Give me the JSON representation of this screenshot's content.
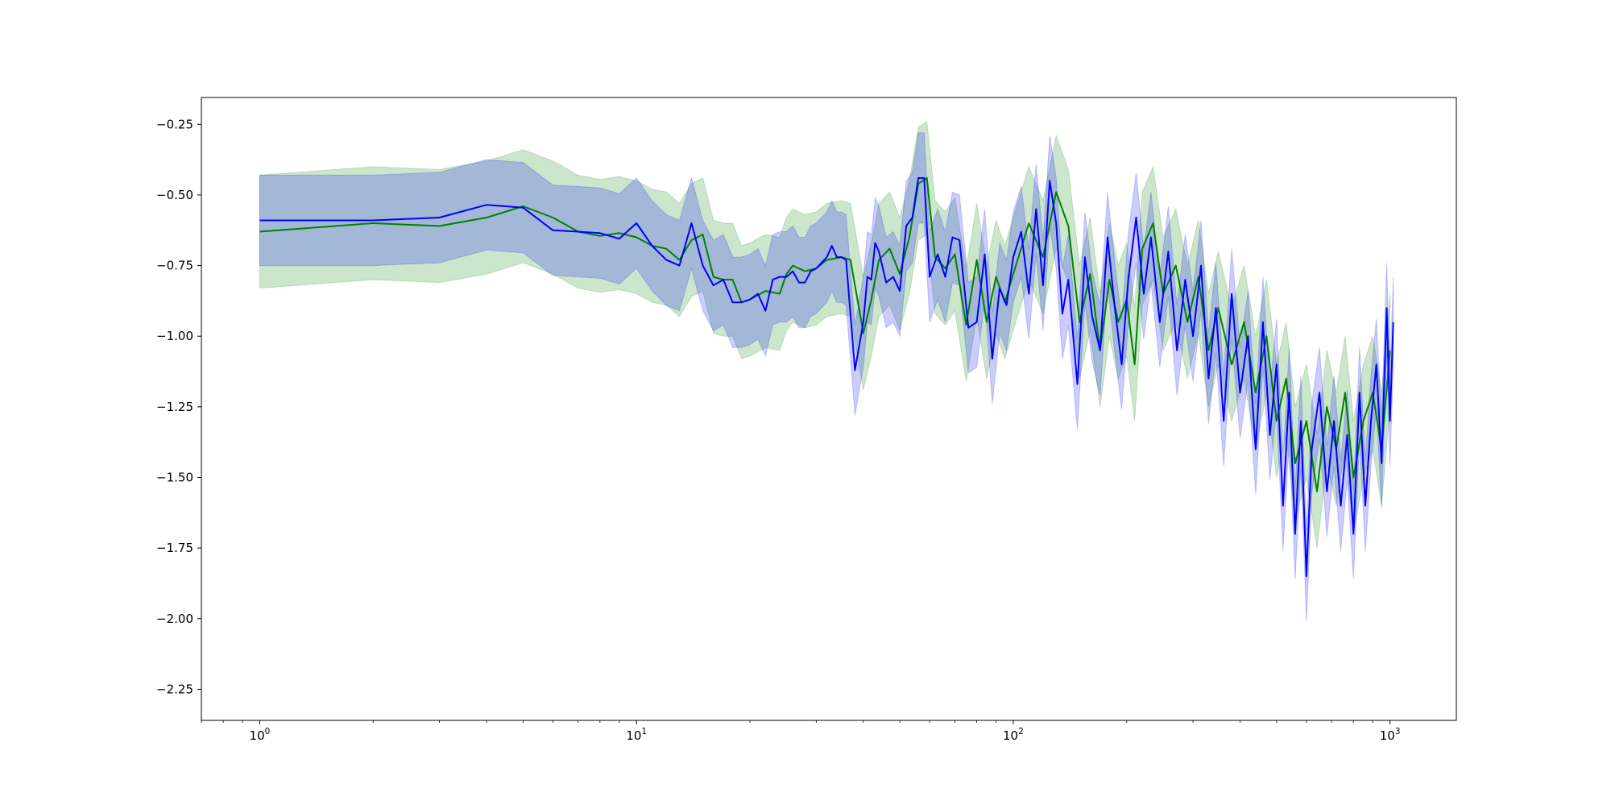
{
  "chart_data": {
    "type": "line",
    "title": "",
    "xlabel": "",
    "ylabel": "",
    "xscale": "log",
    "xlim": [
      0.7,
      1500
    ],
    "ylim": [
      -2.36,
      -0.155
    ],
    "grid": false,
    "legend": "none",
    "x_ticks": [
      {
        "base": "10",
        "exp": "0",
        "value": 1
      },
      {
        "base": "10",
        "exp": "1",
        "value": 10
      },
      {
        "base": "10",
        "exp": "2",
        "value": 100
      },
      {
        "base": "10",
        "exp": "3",
        "value": 1000
      }
    ],
    "y_ticks": [
      {
        "label": "−0.25",
        "value": -0.25
      },
      {
        "label": "−0.50",
        "value": -0.5
      },
      {
        "label": "−0.75",
        "value": -0.75
      },
      {
        "label": "−1.00",
        "value": -1.0
      },
      {
        "label": "−1.25",
        "value": -1.25
      },
      {
        "label": "−1.50",
        "value": -1.5
      },
      {
        "label": "−1.75",
        "value": -1.75
      },
      {
        "label": "−2.00",
        "value": -2.0
      },
      {
        "label": "−2.25",
        "value": -2.25
      }
    ],
    "series": [
      {
        "color": "#008000",
        "band_color": "#008000",
        "band_opacity": 0.2,
        "band_half_width": 0.2,
        "points": [
          [
            1,
            -0.63
          ],
          [
            2,
            -0.6
          ],
          [
            3,
            -0.61
          ],
          [
            4,
            -0.58
          ],
          [
            5,
            -0.54
          ],
          [
            6,
            -0.58
          ],
          [
            7,
            -0.63
          ],
          [
            8,
            -0.645
          ],
          [
            9,
            -0.635
          ],
          [
            10,
            -0.65
          ],
          [
            11,
            -0.68
          ],
          [
            12,
            -0.69
          ],
          [
            13,
            -0.73
          ],
          [
            14,
            -0.66
          ],
          [
            15,
            -0.64
          ],
          [
            16,
            -0.79
          ],
          [
            17,
            -0.8
          ],
          [
            18,
            -0.8
          ],
          [
            19,
            -0.88
          ],
          [
            20,
            -0.87
          ],
          [
            22,
            -0.84
          ],
          [
            24,
            -0.85
          ],
          [
            25,
            -0.78
          ],
          [
            26,
            -0.75
          ],
          [
            28,
            -0.77
          ],
          [
            30,
            -0.76
          ],
          [
            32,
            -0.73
          ],
          [
            35,
            -0.72
          ],
          [
            37,
            -0.73
          ],
          [
            40,
            -0.99
          ],
          [
            42,
            -0.87
          ],
          [
            44,
            -0.73
          ],
          [
            47,
            -0.69
          ],
          [
            50,
            -0.78
          ],
          [
            53,
            -0.65
          ],
          [
            56,
            -0.46
          ],
          [
            59,
            -0.44
          ],
          [
            62,
            -0.72
          ],
          [
            66,
            -0.76
          ],
          [
            70,
            -0.71
          ],
          [
            75,
            -0.96
          ],
          [
            80,
            -0.73
          ],
          [
            85,
            -0.95
          ],
          [
            90,
            -0.79
          ],
          [
            95,
            -0.88
          ],
          [
            100,
            -0.78
          ],
          [
            110,
            -0.6
          ],
          [
            120,
            -0.72
          ],
          [
            130,
            -0.49
          ],
          [
            140,
            -0.61
          ],
          [
            150,
            -0.95
          ],
          [
            160,
            -0.78
          ],
          [
            170,
            -1.05
          ],
          [
            180,
            -0.8
          ],
          [
            190,
            -0.95
          ],
          [
            200,
            -0.87
          ],
          [
            210,
            -1.1
          ],
          [
            220,
            -0.69
          ],
          [
            235,
            -0.6
          ],
          [
            250,
            -0.85
          ],
          [
            270,
            -0.75
          ],
          [
            290,
            -0.95
          ],
          [
            310,
            -0.79
          ],
          [
            330,
            -1.05
          ],
          [
            350,
            -0.9
          ],
          [
            380,
            -1.1
          ],
          [
            410,
            -0.95
          ],
          [
            440,
            -1.2
          ],
          [
            470,
            -1.0
          ],
          [
            500,
            -1.3
          ],
          [
            530,
            -1.15
          ],
          [
            560,
            -1.45
          ],
          [
            600,
            -1.3
          ],
          [
            640,
            -1.55
          ],
          [
            680,
            -1.25
          ],
          [
            720,
            -1.4
          ],
          [
            760,
            -1.2
          ],
          [
            800,
            -1.5
          ],
          [
            850,
            -1.3
          ],
          [
            900,
            -1.2
          ],
          [
            950,
            -1.4
          ],
          [
            1000,
            -1.05
          ]
        ]
      },
      {
        "color": "#0000ff",
        "band_color": "#0000ff",
        "band_opacity": 0.2,
        "band_half_width": 0.16,
        "points": [
          [
            1,
            -0.59
          ],
          [
            2,
            -0.59
          ],
          [
            3,
            -0.58
          ],
          [
            4,
            -0.535
          ],
          [
            5,
            -0.545
          ],
          [
            6,
            -0.625
          ],
          [
            7,
            -0.63
          ],
          [
            8,
            -0.635
          ],
          [
            9,
            -0.655
          ],
          [
            10,
            -0.6
          ],
          [
            11,
            -0.68
          ],
          [
            12,
            -0.73
          ],
          [
            13,
            -0.75
          ],
          [
            14,
            -0.6
          ],
          [
            15,
            -0.75
          ],
          [
            16,
            -0.82
          ],
          [
            17,
            -0.8
          ],
          [
            18,
            -0.88
          ],
          [
            19,
            -0.88
          ],
          [
            20,
            -0.87
          ],
          [
            21,
            -0.85
          ],
          [
            22,
            -0.91
          ],
          [
            23,
            -0.8
          ],
          [
            24,
            -0.79
          ],
          [
            25,
            -0.79
          ],
          [
            26,
            -0.77
          ],
          [
            27,
            -0.81
          ],
          [
            28,
            -0.81
          ],
          [
            29,
            -0.77
          ],
          [
            30,
            -0.76
          ],
          [
            32,
            -0.72
          ],
          [
            33,
            -0.68
          ],
          [
            34,
            -0.72
          ],
          [
            35,
            -0.72
          ],
          [
            36,
            -0.73
          ],
          [
            38,
            -1.12
          ],
          [
            40,
            -0.95
          ],
          [
            41,
            -0.79
          ],
          [
            42,
            -0.8
          ],
          [
            43,
            -0.67
          ],
          [
            44,
            -0.7
          ],
          [
            46,
            -0.81
          ],
          [
            48,
            -0.79
          ],
          [
            50,
            -0.84
          ],
          [
            52,
            -0.61
          ],
          [
            54,
            -0.58
          ],
          [
            56,
            -0.44
          ],
          [
            58,
            -0.44
          ],
          [
            60,
            -0.79
          ],
          [
            63,
            -0.71
          ],
          [
            66,
            -0.79
          ],
          [
            69,
            -0.65
          ],
          [
            72,
            -0.66
          ],
          [
            76,
            -0.97
          ],
          [
            80,
            -0.95
          ],
          [
            84,
            -0.71
          ],
          [
            88,
            -1.08
          ],
          [
            92,
            -0.83
          ],
          [
            96,
            -0.89
          ],
          [
            100,
            -0.72
          ],
          [
            105,
            -0.63
          ],
          [
            110,
            -0.85
          ],
          [
            115,
            -0.55
          ],
          [
            120,
            -0.82
          ],
          [
            125,
            -0.45
          ],
          [
            130,
            -0.6
          ],
          [
            135,
            -0.92
          ],
          [
            140,
            -0.8
          ],
          [
            148,
            -1.17
          ],
          [
            155,
            -0.72
          ],
          [
            162,
            -0.93
          ],
          [
            170,
            -1.05
          ],
          [
            178,
            -0.65
          ],
          [
            186,
            -0.9
          ],
          [
            194,
            -1.1
          ],
          [
            202,
            -0.8
          ],
          [
            212,
            -0.58
          ],
          [
            222,
            -0.85
          ],
          [
            232,
            -0.65
          ],
          [
            245,
            -0.95
          ],
          [
            258,
            -0.7
          ],
          [
            272,
            -1.05
          ],
          [
            286,
            -0.8
          ],
          [
            300,
            -1.0
          ],
          [
            315,
            -0.75
          ],
          [
            330,
            -1.15
          ],
          [
            345,
            -0.9
          ],
          [
            362,
            -1.3
          ],
          [
            380,
            -0.85
          ],
          [
            400,
            -1.2
          ],
          [
            420,
            -1.0
          ],
          [
            440,
            -1.4
          ],
          [
            460,
            -0.95
          ],
          [
            480,
            -1.35
          ],
          [
            500,
            -1.1
          ],
          [
            520,
            -1.6
          ],
          [
            540,
            -1.2
          ],
          [
            560,
            -1.7
          ],
          [
            580,
            -1.3
          ],
          [
            600,
            -1.85
          ],
          [
            620,
            -1.4
          ],
          [
            650,
            -1.2
          ],
          [
            680,
            -1.55
          ],
          [
            710,
            -1.3
          ],
          [
            740,
            -1.6
          ],
          [
            770,
            -1.35
          ],
          [
            800,
            -1.7
          ],
          [
            830,
            -1.2
          ],
          [
            860,
            -1.6
          ],
          [
            890,
            -1.3
          ],
          [
            920,
            -1.1
          ],
          [
            950,
            -1.45
          ],
          [
            980,
            -0.9
          ],
          [
            1000,
            -1.3
          ],
          [
            1020,
            -0.95
          ]
        ]
      }
    ]
  }
}
